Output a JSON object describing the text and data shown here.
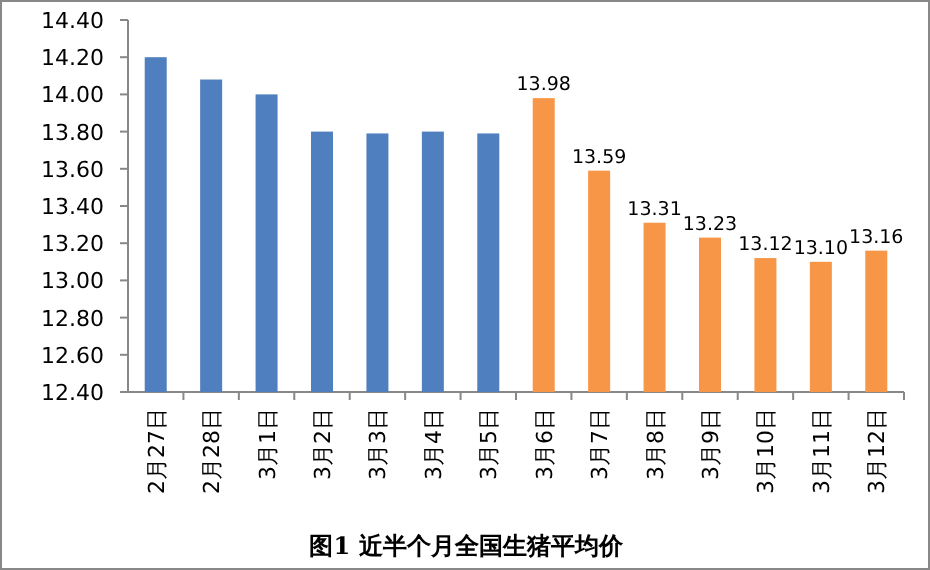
{
  "chart_data": {
    "type": "bar",
    "title": "图1 近半个月全国生猪平均价",
    "categories": [
      "2月27日",
      "2月28日",
      "3月1日",
      "3月2日",
      "3月3日",
      "3月4日",
      "3月5日",
      "3月6日",
      "3月7日",
      "3月8日",
      "3月9日",
      "3月10日",
      "3月11日",
      "3月12日"
    ],
    "values": [
      14.2,
      14.08,
      14.0,
      13.8,
      13.79,
      13.8,
      13.79,
      13.98,
      13.59,
      13.31,
      13.23,
      13.12,
      13.1,
      13.16
    ],
    "colors": [
      "#4f7fbe",
      "#4f7fbe",
      "#4f7fbe",
      "#4f7fbe",
      "#4f7fbe",
      "#4f7fbe",
      "#4f7fbe",
      "#f79646",
      "#f79646",
      "#f79646",
      "#f79646",
      "#f79646",
      "#f79646",
      "#f79646"
    ],
    "value_labels": [
      null,
      null,
      null,
      null,
      null,
      null,
      null,
      "13.98",
      "13.59",
      "13.31",
      "13.23",
      "13.12",
      "13.10",
      "13.16"
    ],
    "ylim": [
      12.4,
      14.4
    ],
    "yticks": [
      {
        "value": 12.4,
        "label": "12.40"
      },
      {
        "value": 12.6,
        "label": "12.60"
      },
      {
        "value": 12.8,
        "label": "12.80"
      },
      {
        "value": 13.0,
        "label": "13.00"
      },
      {
        "value": 13.2,
        "label": "13.20"
      },
      {
        "value": 13.4,
        "label": "13.40"
      },
      {
        "value": 13.6,
        "label": "13.60"
      },
      {
        "value": 13.8,
        "label": "13.80"
      },
      {
        "value": 14.0,
        "label": "14.00"
      },
      {
        "value": 14.2,
        "label": "14.20"
      },
      {
        "value": 14.4,
        "label": "14.40"
      }
    ],
    "grid": false
  }
}
